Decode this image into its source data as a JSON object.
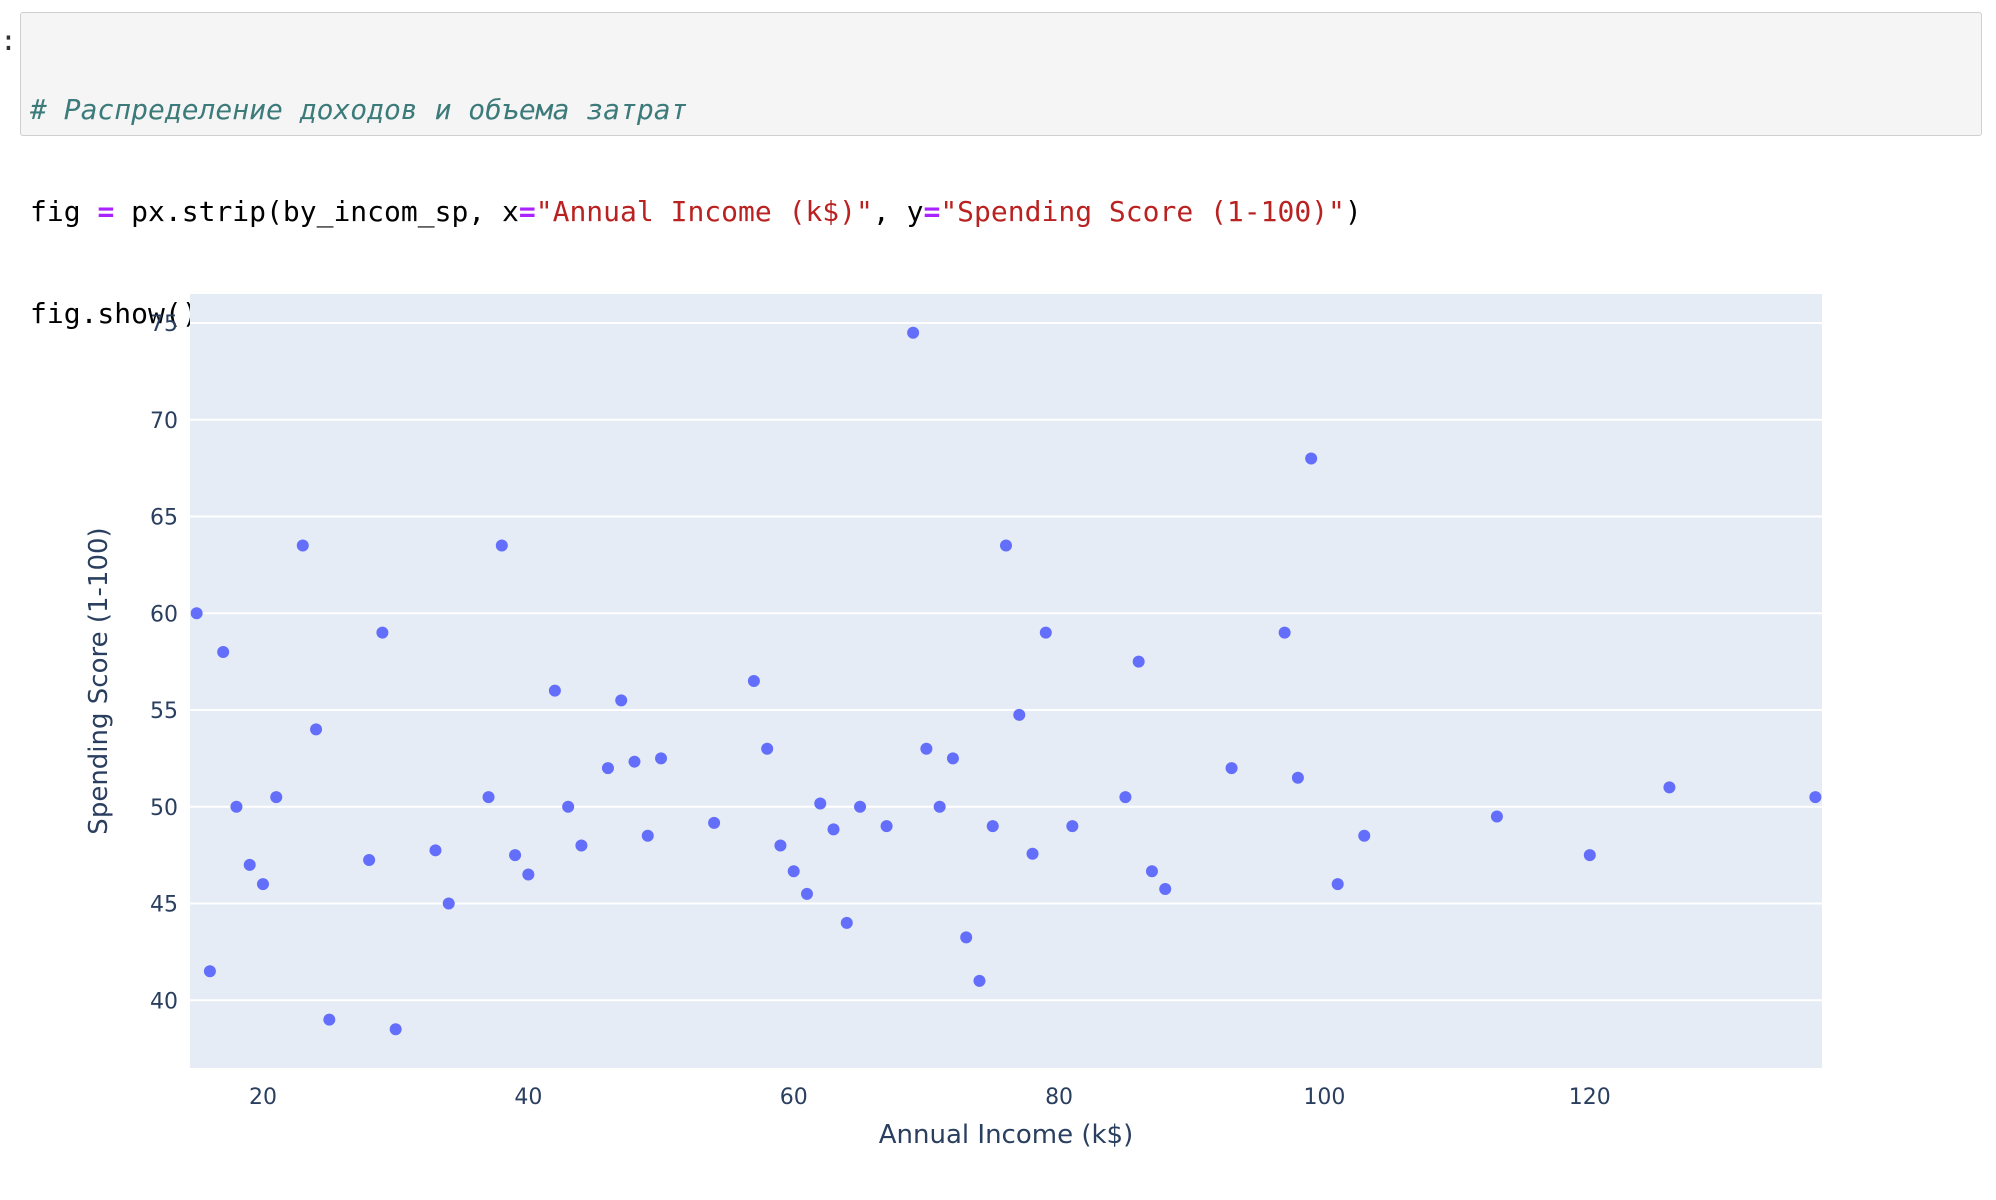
{
  "notebook": {
    "code_lines": [
      [
        {
          "t": "comment",
          "v": "# Распределение доходов и объема затрат"
        }
      ],
      [
        {
          "t": "plain",
          "v": "fig "
        },
        {
          "t": "op",
          "v": "="
        },
        {
          "t": "plain",
          "v": " px.strip(by_incom_sp, x"
        },
        {
          "t": "op",
          "v": "="
        },
        {
          "t": "str",
          "v": "\"Annual Income (k$)\""
        },
        {
          "t": "plain",
          "v": ", y"
        },
        {
          "t": "op",
          "v": "="
        },
        {
          "t": "str",
          "v": "\"Spending Score (1-100)\""
        },
        {
          "t": "plain",
          "v": ")"
        }
      ],
      [
        {
          "t": "plain",
          "v": "fig.show()"
        }
      ]
    ]
  },
  "chart_data": {
    "type": "scatter",
    "xlabel": "Annual Income (k$)",
    "ylabel": "Spending Score (1-100)",
    "xlim": [
      14.5,
      137.5
    ],
    "ylim": [
      36.5,
      76.5
    ],
    "xticks": [
      20,
      40,
      60,
      80,
      100,
      120
    ],
    "yticks": [
      40,
      45,
      50,
      55,
      60,
      65,
      70,
      75
    ],
    "grid": true,
    "colors": {
      "marker": "#636efa",
      "plot_bg": "#e5ecf6",
      "grid": "#ffffff",
      "text": "#2a3f5f"
    },
    "points": [
      [
        15,
        60
      ],
      [
        16,
        41.5
      ],
      [
        17,
        58
      ],
      [
        18,
        50
      ],
      [
        19,
        47
      ],
      [
        20,
        46
      ],
      [
        21,
        50.5
      ],
      [
        23,
        63.5
      ],
      [
        24,
        54
      ],
      [
        25,
        39
      ],
      [
        28,
        47.25
      ],
      [
        29,
        59
      ],
      [
        30,
        38.5
      ],
      [
        33,
        47.75
      ],
      [
        34,
        45
      ],
      [
        37,
        50.5
      ],
      [
        38,
        63.5
      ],
      [
        39,
        47.5
      ],
      [
        40,
        46.5
      ],
      [
        42,
        56
      ],
      [
        43,
        50
      ],
      [
        44,
        48
      ],
      [
        46,
        52
      ],
      [
        47,
        55.5
      ],
      [
        48,
        52.33
      ],
      [
        49,
        48.5
      ],
      [
        50,
        52.5
      ],
      [
        54,
        49.17
      ],
      [
        57,
        56.5
      ],
      [
        58,
        53
      ],
      [
        59,
        48
      ],
      [
        60,
        46.67
      ],
      [
        61,
        45.5
      ],
      [
        62,
        50.17
      ],
      [
        63,
        48.83
      ],
      [
        64,
        44
      ],
      [
        65,
        50
      ],
      [
        67,
        49
      ],
      [
        69,
        74.5
      ],
      [
        70,
        53
      ],
      [
        71,
        50
      ],
      [
        72,
        52.5
      ],
      [
        73,
        43.25
      ],
      [
        74,
        41
      ],
      [
        75,
        49
      ],
      [
        76,
        63.5
      ],
      [
        77,
        54.75
      ],
      [
        78,
        47.57
      ],
      [
        79,
        59
      ],
      [
        81,
        49
      ],
      [
        85,
        50.5
      ],
      [
        86,
        57.5
      ],
      [
        87,
        46.67
      ],
      [
        88,
        45.75
      ],
      [
        93,
        52
      ],
      [
        97,
        59
      ],
      [
        98,
        51.5
      ],
      [
        99,
        68
      ],
      [
        101,
        46
      ],
      [
        103,
        48.5
      ],
      [
        113,
        49.5
      ],
      [
        120,
        47.5
      ],
      [
        126,
        51
      ],
      [
        137,
        50.5
      ]
    ]
  }
}
